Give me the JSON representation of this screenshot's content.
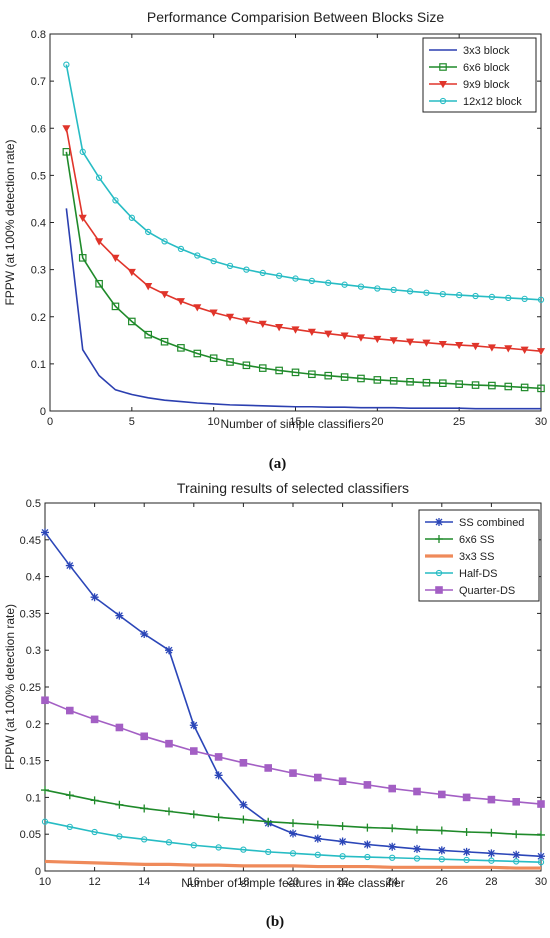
{
  "chart_data": [
    {
      "type": "line",
      "title": "Performance Comparision Between Blocks Size",
      "xlabel": "Number of simple classifiers",
      "ylabel": "FPPW (at 100% detection rate)",
      "caption": "(a)",
      "xlim": [
        0,
        30
      ],
      "ylim": [
        0,
        0.8
      ],
      "xticks": [
        0,
        5,
        10,
        15,
        20,
        25,
        30
      ],
      "yticks": [
        0,
        0.1,
        0.2,
        0.3,
        0.4,
        0.5,
        0.6,
        0.7,
        0.8
      ],
      "grid": false,
      "legend": "top-right",
      "series": [
        {
          "name": "3x3 block",
          "color": "#2b3fb0",
          "marker": "none",
          "x": [
            1,
            2,
            3,
            4,
            5,
            6,
            7,
            8,
            9,
            10,
            11,
            12,
            13,
            14,
            15,
            16,
            17,
            18,
            19,
            20,
            21,
            22,
            23,
            24,
            25,
            26,
            27,
            28,
            29,
            30
          ],
          "values": [
            0.43,
            0.13,
            0.075,
            0.045,
            0.035,
            0.028,
            0.023,
            0.02,
            0.017,
            0.015,
            0.013,
            0.012,
            0.011,
            0.01,
            0.009,
            0.009,
            0.008,
            0.008,
            0.007,
            0.007,
            0.007,
            0.006,
            0.006,
            0.006,
            0.006,
            0.005,
            0.005,
            0.005,
            0.005,
            0.005
          ]
        },
        {
          "name": "6x6 block",
          "color": "#1f8a2a",
          "marker": "square",
          "x": [
            1,
            2,
            3,
            4,
            5,
            6,
            7,
            8,
            9,
            10,
            11,
            12,
            13,
            14,
            15,
            16,
            17,
            18,
            19,
            20,
            21,
            22,
            23,
            24,
            25,
            26,
            27,
            28,
            29,
            30
          ],
          "values": [
            0.55,
            0.325,
            0.27,
            0.222,
            0.19,
            0.162,
            0.147,
            0.134,
            0.122,
            0.112,
            0.104,
            0.097,
            0.091,
            0.086,
            0.082,
            0.078,
            0.075,
            0.072,
            0.069,
            0.066,
            0.064,
            0.062,
            0.06,
            0.059,
            0.057,
            0.055,
            0.054,
            0.052,
            0.05,
            0.048
          ]
        },
        {
          "name": "9x9 block",
          "color": "#e0352b",
          "marker": "triangle-down",
          "x": [
            1,
            2,
            3,
            4,
            5,
            6,
            7,
            8,
            9,
            10,
            11,
            12,
            13,
            14,
            15,
            16,
            17,
            18,
            19,
            20,
            21,
            22,
            23,
            24,
            25,
            26,
            27,
            28,
            29,
            30
          ],
          "values": [
            0.6,
            0.41,
            0.36,
            0.325,
            0.295,
            0.265,
            0.248,
            0.233,
            0.22,
            0.209,
            0.2,
            0.192,
            0.185,
            0.178,
            0.173,
            0.168,
            0.164,
            0.16,
            0.156,
            0.153,
            0.15,
            0.147,
            0.145,
            0.142,
            0.14,
            0.138,
            0.135,
            0.133,
            0.13,
            0.127
          ]
        },
        {
          "name": "12x12 block",
          "color": "#27bcc4",
          "marker": "circle",
          "x": [
            1,
            2,
            3,
            4,
            5,
            6,
            7,
            8,
            9,
            10,
            11,
            12,
            13,
            14,
            15,
            16,
            17,
            18,
            19,
            20,
            21,
            22,
            23,
            24,
            25,
            26,
            27,
            28,
            29,
            30
          ],
          "values": [
            0.735,
            0.55,
            0.495,
            0.447,
            0.41,
            0.38,
            0.36,
            0.344,
            0.33,
            0.318,
            0.308,
            0.3,
            0.293,
            0.287,
            0.281,
            0.276,
            0.272,
            0.268,
            0.264,
            0.26,
            0.257,
            0.254,
            0.251,
            0.248,
            0.246,
            0.244,
            0.242,
            0.24,
            0.238,
            0.236
          ]
        }
      ]
    },
    {
      "type": "line",
      "title": "Training results of selected classifiers",
      "xlabel": "Number of simple features in the classifier",
      "ylabel": "FPPW (at 100% detection rate)",
      "caption": "(b)",
      "xlim": [
        10,
        30
      ],
      "ylim": [
        0,
        0.5
      ],
      "xticks": [
        10,
        12,
        14,
        16,
        18,
        20,
        22,
        24,
        26,
        28,
        30
      ],
      "yticks": [
        0,
        0.05,
        0.1,
        0.15,
        0.2,
        0.25,
        0.3,
        0.35,
        0.4,
        0.45,
        0.5
      ],
      "grid": false,
      "legend": "top-right",
      "series": [
        {
          "name": "SS combined",
          "color": "#2b46b8",
          "marker": "asterisk",
          "x": [
            10,
            11,
            12,
            13,
            14,
            15,
            16,
            17,
            18,
            19,
            20,
            21,
            22,
            23,
            24,
            25,
            26,
            27,
            28,
            29,
            30
          ],
          "values": [
            0.46,
            0.415,
            0.372,
            0.347,
            0.322,
            0.3,
            0.198,
            0.13,
            0.09,
            0.065,
            0.051,
            0.044,
            0.04,
            0.036,
            0.033,
            0.03,
            0.028,
            0.026,
            0.024,
            0.022,
            0.02
          ]
        },
        {
          "name": "6x6 SS",
          "color": "#1f8a2a",
          "marker": "plus",
          "x": [
            10,
            11,
            12,
            13,
            14,
            15,
            16,
            17,
            18,
            19,
            20,
            21,
            22,
            23,
            24,
            25,
            26,
            27,
            28,
            29,
            30
          ],
          "values": [
            0.11,
            0.103,
            0.096,
            0.09,
            0.085,
            0.081,
            0.077,
            0.073,
            0.07,
            0.067,
            0.065,
            0.063,
            0.061,
            0.059,
            0.058,
            0.056,
            0.055,
            0.053,
            0.052,
            0.05,
            0.049
          ]
        },
        {
          "name": "3x3 SS",
          "color": "#ef8a5a",
          "marker": "none",
          "x": [
            10,
            11,
            12,
            13,
            14,
            15,
            16,
            17,
            18,
            19,
            20,
            21,
            22,
            23,
            24,
            25,
            26,
            27,
            28,
            29,
            30
          ],
          "values": [
            0.013,
            0.012,
            0.011,
            0.01,
            0.009,
            0.009,
            0.008,
            0.008,
            0.007,
            0.007,
            0.007,
            0.006,
            0.006,
            0.006,
            0.005,
            0.005,
            0.005,
            0.005,
            0.005,
            0.004,
            0.004
          ]
        },
        {
          "name": "Half-DS",
          "color": "#27bcc4",
          "marker": "circle",
          "x": [
            10,
            11,
            12,
            13,
            14,
            15,
            16,
            17,
            18,
            19,
            20,
            21,
            22,
            23,
            24,
            25,
            26,
            27,
            28,
            29,
            30
          ],
          "values": [
            0.067,
            0.06,
            0.053,
            0.047,
            0.043,
            0.039,
            0.035,
            0.032,
            0.029,
            0.026,
            0.024,
            0.022,
            0.02,
            0.019,
            0.018,
            0.017,
            0.016,
            0.015,
            0.014,
            0.013,
            0.012
          ]
        },
        {
          "name": "Quarter-DS",
          "color": "#a35fc4",
          "marker": "square",
          "x": [
            10,
            11,
            12,
            13,
            14,
            15,
            16,
            17,
            18,
            19,
            20,
            21,
            22,
            23,
            24,
            25,
            26,
            27,
            28,
            29,
            30
          ],
          "values": [
            0.232,
            0.218,
            0.206,
            0.195,
            0.183,
            0.173,
            0.163,
            0.155,
            0.147,
            0.14,
            0.133,
            0.127,
            0.122,
            0.117,
            0.112,
            0.108,
            0.104,
            0.1,
            0.097,
            0.094,
            0.091
          ]
        }
      ]
    }
  ]
}
